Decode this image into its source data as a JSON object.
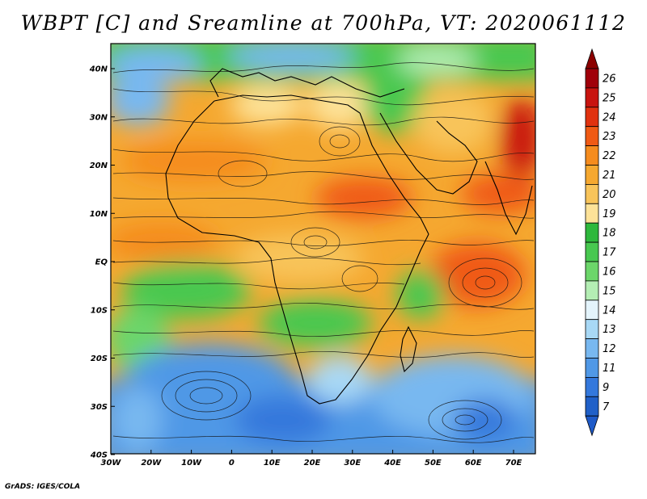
{
  "title": "WBPT [C] and Sreamline at 700hPa, VT: 2020061112",
  "credit": "GrADS: IGES/COLA",
  "lon_labels": [
    "30W",
    "20W",
    "10W",
    "0",
    "10E",
    "20E",
    "30E",
    "40E",
    "50E",
    "60E",
    "70E"
  ],
  "lat_labels": [
    "40N",
    "30N",
    "20N",
    "10N",
    "EQ",
    "10S",
    "20S",
    "30S",
    "40S"
  ],
  "colorbar": {
    "labels": [
      "26",
      "25",
      "24",
      "23",
      "22",
      "21",
      "20",
      "19",
      "18",
      "17",
      "16",
      "15",
      "14",
      "13",
      "12",
      "11",
      "9",
      "7"
    ],
    "colors": [
      "#a0000a",
      "#c8140f",
      "#e1320f",
      "#f05a14",
      "#f58c1e",
      "#f5a830",
      "#f8c45a",
      "#fde298",
      "#2eb83c",
      "#48c850",
      "#6cd66a",
      "#b4eeb4",
      "#e4f4fc",
      "#a8d8f5",
      "#78b8f0",
      "#5098e6",
      "#3478dc",
      "#2060c8"
    ],
    "upper_arrow_color": "#8b0000",
    "lower_arrow_color": "#1e5ac8"
  },
  "map_region": {
    "lon_min": -30,
    "lon_max": 75,
    "lat_min": -40,
    "lat_max": 45
  }
}
